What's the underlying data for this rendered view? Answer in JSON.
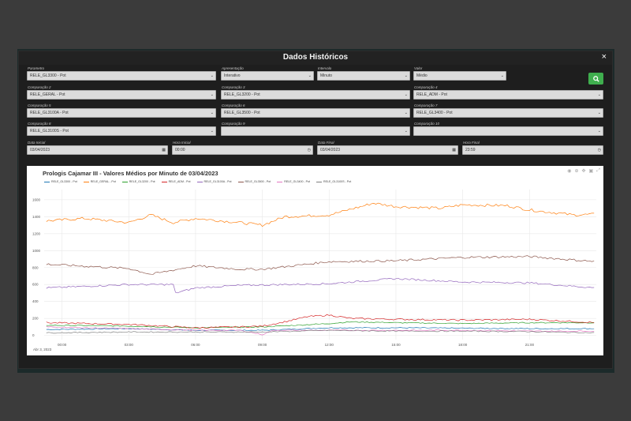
{
  "modal": {
    "title": "Dados Históricos",
    "close_label": "×"
  },
  "form": {
    "parametro": {
      "label": "Parametro",
      "value": "RELE_GL3300 - Pot"
    },
    "apresentacao": {
      "label": "Apresentação",
      "value": "Interativo"
    },
    "intervalo": {
      "label": "Intervalo",
      "value": "Minuto"
    },
    "valor": {
      "label": "Valor",
      "value": "Médio"
    },
    "comparacao2": {
      "label": "Comparação 2",
      "value": "RELE_GERAL - Pot"
    },
    "comparacao3": {
      "label": "Comparação 3",
      "value": "RELE_GL3200 - Pot"
    },
    "comparacao4": {
      "label": "Comparação 4",
      "value": "RELE_ADM - Pot"
    },
    "comparacao5": {
      "label": "Comparação 5",
      "value": "RELE_GL3100A - Pot"
    },
    "comparacao6": {
      "label": "Comparação 6",
      "value": "RELE_GL3500 - Pot"
    },
    "comparacao7": {
      "label": "Comparação 7",
      "value": "RELE_GL3400 - Pot"
    },
    "comparacao8": {
      "label": "Comparação 8",
      "value": "RELE_GL3100S - Pot"
    },
    "comparacao9": {
      "label": "Comparação 9",
      "value": ""
    },
    "comparacao10": {
      "label": "Comparação 10",
      "value": ""
    },
    "data_inicial": {
      "label": "Data Inicial",
      "value": "03/04/2023"
    },
    "hora_inicial": {
      "label": "Hora Inicial",
      "value": "00:00"
    },
    "data_final": {
      "label": "Data Final",
      "value": "03/04/2023"
    },
    "hora_final": {
      "label": "Hora Final",
      "value": "23:59"
    }
  },
  "colors": {
    "accent": "#3fae4e"
  },
  "chart_data": {
    "type": "line",
    "title": "Prologis Cajamar III - Valores Médios por Minuto de 03/04/2023",
    "x_start_label": "Abr 3, 2023",
    "x_tick_labels": [
      "00:00",
      "03:00",
      "06:00",
      "09:00",
      "12:00",
      "15:00",
      "18:00",
      "21:00"
    ],
    "x_ticks_hours": [
      0,
      3,
      6,
      9,
      12,
      15,
      18,
      21
    ],
    "y_ticks": [
      0,
      200,
      400,
      600,
      800,
      1000,
      1200,
      1400,
      1600
    ],
    "y_tick_labels": [
      "0",
      "200",
      "400",
      "600",
      "800",
      "1000",
      "1200",
      "1400",
      "1600"
    ],
    "xlim_hours": [
      -0.8,
      24
    ],
    "ylim": [
      -50,
      1720
    ],
    "grid": true,
    "legend_position": "top",
    "series": [
      {
        "name": "RELE_GL3300 - Pot",
        "color": "#1f77b4",
        "x": [
          -0.7,
          3,
          6,
          9,
          12,
          15,
          18,
          21,
          24
        ],
        "y": [
          70,
          80,
          60,
          60,
          90,
          90,
          85,
          80,
          80
        ]
      },
      {
        "name": "RELE_GERAL - Pot",
        "color": "#ff7f0e",
        "x": [
          -0.7,
          1,
          3,
          4,
          5,
          6,
          8,
          9,
          10,
          12,
          14,
          15,
          17,
          18,
          20,
          21,
          23,
          24
        ],
        "y": [
          1350,
          1380,
          1330,
          1420,
          1330,
          1380,
          1330,
          1300,
          1400,
          1420,
          1560,
          1520,
          1500,
          1540,
          1530,
          1480,
          1420,
          1430
        ]
      },
      {
        "name": "RELE_GL3200 - Pot",
        "color": "#2ca02c",
        "x": [
          -0.7,
          3,
          6,
          9,
          12,
          13,
          15,
          18,
          21,
          24
        ],
        "y": [
          120,
          110,
          90,
          100,
          140,
          160,
          150,
          140,
          150,
          150
        ]
      },
      {
        "name": "RELE_ADM - Pot",
        "color": "#d62728",
        "x": [
          -0.7,
          3,
          6,
          8,
          9,
          10,
          11,
          12,
          13,
          15,
          18,
          21,
          24
        ],
        "y": [
          150,
          130,
          90,
          100,
          110,
          160,
          220,
          240,
          200,
          190,
          180,
          190,
          150
        ]
      },
      {
        "name": "RELE_GL3100A - Pot",
        "color": "#9467bd",
        "x": [
          -0.7,
          3,
          5,
          5.1,
          6,
          8,
          12,
          14,
          15,
          18,
          21,
          24
        ],
        "y": [
          560,
          600,
          600,
          500,
          560,
          590,
          610,
          650,
          670,
          630,
          620,
          560
        ]
      },
      {
        "name": "RELE_GL3500 - Pot",
        "color": "#8c564b",
        "x": [
          -0.7,
          3,
          4,
          6,
          8,
          9,
          12,
          15,
          18,
          21,
          24
        ],
        "y": [
          840,
          790,
          720,
          820,
          780,
          780,
          870,
          880,
          920,
          930,
          870
        ]
      },
      {
        "name": "RELE_GL3400 - Pot",
        "color": "#e377c2",
        "x": [
          -0.7,
          3,
          6,
          8,
          9,
          9.5,
          12,
          15,
          18,
          21,
          24
        ],
        "y": [
          100,
          80,
          60,
          60,
          10,
          60,
          60,
          60,
          60,
          50,
          50
        ]
      },
      {
        "name": "RELE_GL3100S - Pot",
        "color": "#7f7f7f",
        "x": [
          -0.7,
          3,
          6,
          9,
          12,
          15,
          18,
          21,
          24
        ],
        "y": [
          30,
          40,
          40,
          40,
          60,
          50,
          50,
          45,
          30
        ]
      }
    ]
  }
}
